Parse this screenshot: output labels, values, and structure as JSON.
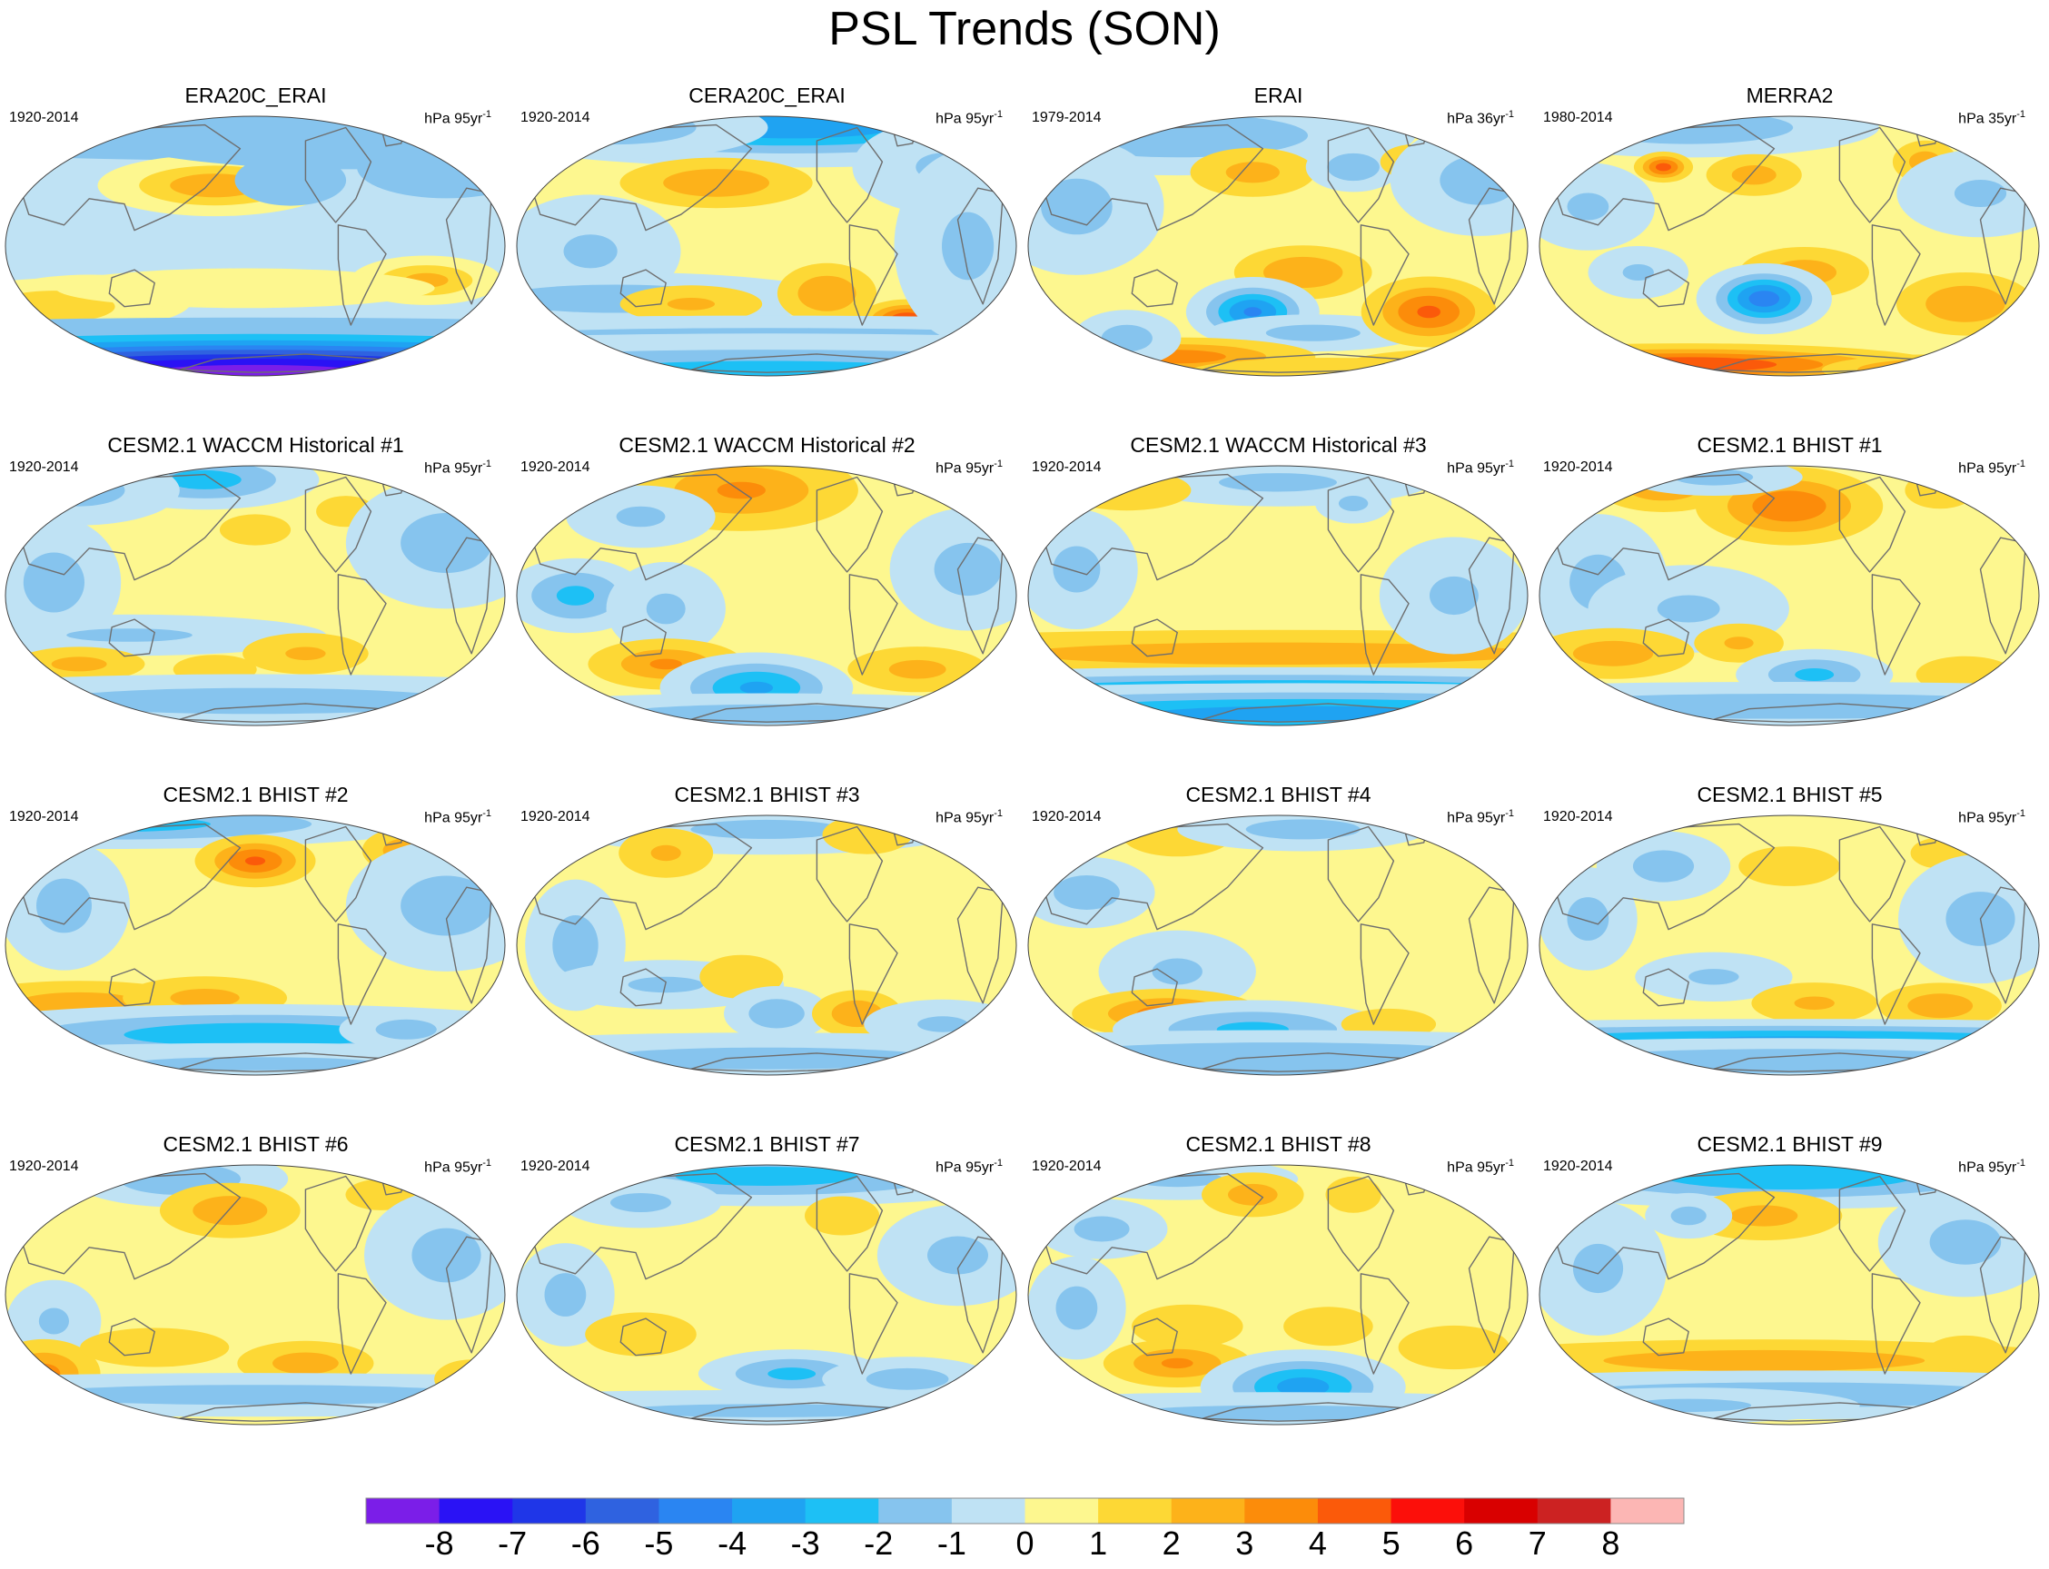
{
  "figure_title": "PSL Trends (SON)",
  "colors": {
    "land_outline": "#6e6e6e",
    "levels": [
      "#7b1ee8",
      "#2a12f5",
      "#1f36e8",
      "#2f62e0",
      "#2a85f2",
      "#1fa3f2",
      "#1dc0f5",
      "#86c4ee",
      "#bfe2f4",
      "#fdf78f",
      "#fdd835",
      "#fdb21a",
      "#fc8c0a",
      "#fb5a0a",
      "#fc0f0a",
      "#d90000",
      "#cc2222",
      "#fcb6b4"
    ]
  },
  "colorbar_labels": [
    "-8",
    "-7",
    "-6",
    "-5",
    "-4",
    "-3",
    "-2",
    "-1",
    "0",
    "1",
    "2",
    "3",
    "4",
    "5",
    "6",
    "7",
    "8"
  ],
  "chart_data": {
    "type": "heatmap",
    "variable": "PSL",
    "season": "SON",
    "projection": "Robinson (Pacific-centred)",
    "units_base": "hPa",
    "contour_levels": [
      -8,
      -7,
      -6,
      -5,
      -4,
      -3,
      -2,
      -1,
      0,
      1,
      2,
      3,
      4,
      5,
      6,
      7,
      8
    ],
    "panels": [
      {
        "title": "ERA20C_ERAI",
        "period": "1920-2014",
        "units": "hPa 95yr",
        "unit_exp": "-1",
        "pattern": "era20c"
      },
      {
        "title": "CERA20C_ERAI",
        "period": "1920-2014",
        "units": "hPa 95yr",
        "unit_exp": "-1",
        "pattern": "cera20c"
      },
      {
        "title": "ERAI",
        "period": "1979-2014",
        "units": "hPa 36yr",
        "unit_exp": "-1",
        "pattern": "erai"
      },
      {
        "title": "MERRA2",
        "period": "1980-2014",
        "units": "hPa 35yr",
        "unit_exp": "-1",
        "pattern": "merra2"
      },
      {
        "title": "CESM2.1 WACCM Historical #1",
        "period": "1920-2014",
        "units": "hPa 95yr",
        "unit_exp": "-1",
        "pattern": "w1"
      },
      {
        "title": "CESM2.1 WACCM Historical #2",
        "period": "1920-2014",
        "units": "hPa 95yr",
        "unit_exp": "-1",
        "pattern": "w2"
      },
      {
        "title": "CESM2.1 WACCM Historical #3",
        "period": "1920-2014",
        "units": "hPa 95yr",
        "unit_exp": "-1",
        "pattern": "w3"
      },
      {
        "title": "CESM2.1 BHIST #1",
        "period": "1920-2014",
        "units": "hPa 95yr",
        "unit_exp": "-1",
        "pattern": "b1"
      },
      {
        "title": "CESM2.1 BHIST #2",
        "period": "1920-2014",
        "units": "hPa 95yr",
        "unit_exp": "-1",
        "pattern": "b2"
      },
      {
        "title": "CESM2.1 BHIST #3",
        "period": "1920-2014",
        "units": "hPa 95yr",
        "unit_exp": "-1",
        "pattern": "b3"
      },
      {
        "title": "CESM2.1 BHIST #4",
        "period": "1920-2014",
        "units": "hPa 95yr",
        "unit_exp": "-1",
        "pattern": "b4"
      },
      {
        "title": "CESM2.1 BHIST #5",
        "period": "1920-2014",
        "units": "hPa 95yr",
        "unit_exp": "-1",
        "pattern": "b5"
      },
      {
        "title": "CESM2.1 BHIST #6",
        "period": "1920-2014",
        "units": "hPa 95yr",
        "unit_exp": "-1",
        "pattern": "b6"
      },
      {
        "title": "CESM2.1 BHIST #7",
        "period": "1920-2014",
        "units": "hPa 95yr",
        "unit_exp": "-1",
        "pattern": "b7"
      },
      {
        "title": "CESM2.1 BHIST #8",
        "period": "1920-2014",
        "units": "hPa 95yr",
        "unit_exp": "-1",
        "pattern": "b8"
      },
      {
        "title": "CESM2.1 BHIST #9",
        "period": "1920-2014",
        "units": "hPa 95yr",
        "unit_exp": "-1",
        "pattern": "b9"
      }
    ]
  }
}
